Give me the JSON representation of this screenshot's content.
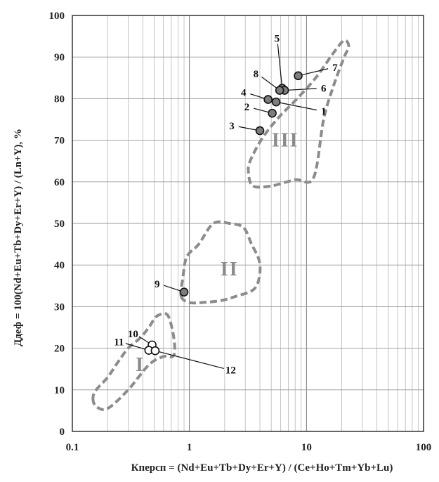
{
  "chart_data": {
    "type": "scatter",
    "xscale": "log",
    "xlim": [
      0.1,
      100
    ],
    "ylim": [
      0,
      100
    ],
    "grid": true,
    "xticks": [
      "0.1",
      "1",
      "10",
      "100"
    ],
    "yticks": [
      "0",
      "10",
      "20",
      "30",
      "40",
      "50",
      "60",
      "70",
      "80",
      "90",
      "100"
    ],
    "xlabel": "Кперсп = (Nd+Eu+Tb+Dy+Er+Y) / (Ce+Ho+Tm+Yb+Lu)",
    "ylabel": "Ддеф = 100(Nd+Eu+Tb+Dy+Er+Y) / (Ln+Y), %",
    "points": [
      {
        "label": "1",
        "x": 5.5,
        "y": 79.2,
        "fill": "#7d7d7d",
        "lx": 14.0,
        "ly": 77.0
      },
      {
        "label": "2",
        "x": 5.1,
        "y": 76.5,
        "fill": "#7d7d7d",
        "lx": 3.1,
        "ly": 78.0
      },
      {
        "label": "3",
        "x": 4.0,
        "y": 72.3,
        "fill": "#7d7d7d",
        "lx": 2.3,
        "ly": 73.5
      },
      {
        "label": "4",
        "x": 4.7,
        "y": 79.8,
        "fill": "#7d7d7d",
        "lx": 2.9,
        "ly": 81.5
      },
      {
        "label": "5",
        "x": 6.2,
        "y": 82.5,
        "fill": "#7d7d7d",
        "lx": 5.6,
        "ly": 94.5
      },
      {
        "label": "6",
        "x": 6.5,
        "y": 82.0,
        "fill": "#7d7d7d",
        "lx": 14.0,
        "ly": 82.5
      },
      {
        "label": "7",
        "x": 8.5,
        "y": 85.5,
        "fill": "#7d7d7d",
        "lx": 17.5,
        "ly": 87.5
      },
      {
        "label": "8",
        "x": 5.9,
        "y": 82.0,
        "fill": "#7d7d7d",
        "lx": 3.7,
        "ly": 86.0
      },
      {
        "label": "9",
        "x": 0.9,
        "y": 33.5,
        "fill": "#7d7d7d",
        "lx": 0.53,
        "ly": 35.5
      },
      {
        "label": "10",
        "x": 0.48,
        "y": 20.8,
        "fill": "#ffffff",
        "lx": 0.33,
        "ly": 23.5
      },
      {
        "label": "11",
        "x": 0.45,
        "y": 19.5,
        "fill": "#ffffff",
        "lx": 0.25,
        "ly": 21.5
      },
      {
        "label": "12",
        "x": 0.51,
        "y": 19.4,
        "fill": "#ffffff",
        "lx": 2.25,
        "ly": 14.8
      }
    ],
    "regions": [
      {
        "name": "I",
        "label_x": 0.38,
        "label_y": 14.5,
        "outline": [
          [
            0.15,
            8
          ],
          [
            0.16,
            6
          ],
          [
            0.2,
            5.5
          ],
          [
            0.3,
            10
          ],
          [
            0.45,
            16
          ],
          [
            0.6,
            18
          ],
          [
            0.72,
            18
          ],
          [
            0.75,
            20
          ],
          [
            0.72,
            24
          ],
          [
            0.65,
            28
          ],
          [
            0.55,
            28
          ],
          [
            0.5,
            27
          ],
          [
            0.45,
            25
          ],
          [
            0.38,
            22.5
          ],
          [
            0.3,
            20
          ],
          [
            0.25,
            17
          ],
          [
            0.2,
            13
          ],
          [
            0.16,
            10
          ],
          [
            0.15,
            8
          ]
        ]
      },
      {
        "name": "II",
        "label_x": 2.2,
        "label_y": 37.5,
        "outline": [
          [
            0.85,
            32.5
          ],
          [
            1.0,
            31
          ],
          [
            1.3,
            31
          ],
          [
            1.9,
            31.5
          ],
          [
            2.5,
            32.5
          ],
          [
            3.5,
            34
          ],
          [
            3.95,
            37
          ],
          [
            3.95,
            41
          ],
          [
            3.4,
            45
          ],
          [
            2.9,
            49
          ],
          [
            2.2,
            50
          ],
          [
            1.6,
            50
          ],
          [
            1.2,
            45
          ],
          [
            0.95,
            42
          ],
          [
            0.88,
            37
          ],
          [
            0.85,
            32.5
          ]
        ]
      },
      {
        "name": "III",
        "label_x": 6.6,
        "label_y": 68.5,
        "outline": [
          [
            3.5,
            59
          ],
          [
            5,
            59
          ],
          [
            8,
            60.5
          ],
          [
            11.5,
            61
          ],
          [
            14,
            75
          ],
          [
            17,
            83
          ],
          [
            21,
            90
          ],
          [
            23,
            92.5
          ],
          [
            21,
            94
          ],
          [
            17,
            91
          ],
          [
            12,
            85
          ],
          [
            8,
            79.5
          ],
          [
            5.8,
            75.5
          ],
          [
            4.2,
            70.5
          ],
          [
            3.3,
            65
          ],
          [
            3.2,
            62
          ],
          [
            3.5,
            59
          ]
        ]
      }
    ]
  }
}
